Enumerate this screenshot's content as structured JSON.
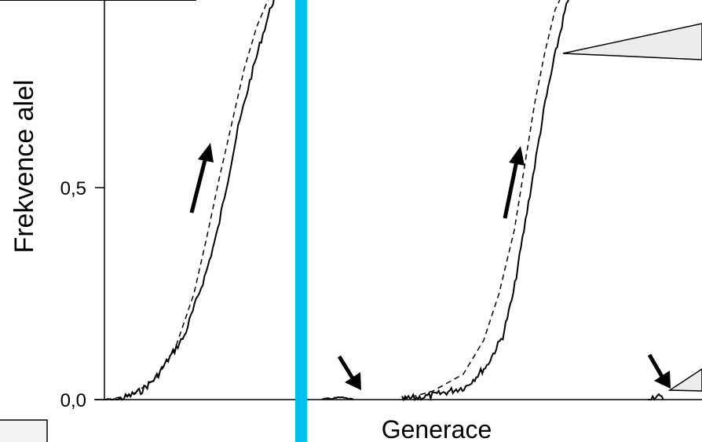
{
  "chart_data": {
    "type": "line",
    "xlabel": "Generace",
    "ylabel": "Frekvence alel",
    "yticks": [
      {
        "value": 0.0,
        "label": "0,0"
      },
      {
        "value": 0.5,
        "label": "0,5"
      }
    ],
    "ylim": [
      0,
      1
    ],
    "divider_color": "#00bff3",
    "panels": [
      {
        "series": [
          {
            "style": "solid-stochastic",
            "points": [
              [
                0,
                0.0
              ],
              [
                10,
                0.0
              ],
              [
                18,
                0.01
              ],
              [
                25,
                0.02
              ],
              [
                35,
                0.05
              ],
              [
                45,
                0.1
              ],
              [
                55,
                0.15
              ],
              [
                62,
                0.22
              ],
              [
                70,
                0.3
              ],
              [
                78,
                0.4
              ],
              [
                85,
                0.52
              ],
              [
                92,
                0.64
              ],
              [
                100,
                0.75
              ],
              [
                108,
                0.85
              ],
              [
                115,
                0.93
              ],
              [
                120,
                0.97
              ],
              [
                125,
                1.0
              ]
            ]
          },
          {
            "style": "dashed-deterministic",
            "points": [
              [
                0,
                0.0
              ],
              [
                20,
                0.01
              ],
              [
                40,
                0.05
              ],
              [
                55,
                0.12
              ],
              [
                70,
                0.25
              ],
              [
                80,
                0.38
              ],
              [
                90,
                0.52
              ],
              [
                100,
                0.65
              ],
              [
                110,
                0.78
              ],
              [
                120,
                0.88
              ],
              [
                130,
                0.95
              ],
              [
                140,
                0.99
              ]
            ]
          }
        ],
        "arrows": [
          "up"
        ]
      },
      {
        "series": [
          {
            "style": "solid-stochastic",
            "points": [
              [
                0,
                0.0
              ],
              [
                12,
                0.005
              ],
              [
                20,
                0.0
              ]
            ]
          },
          {
            "style": "solid-stochastic",
            "points": [
              [
                0,
                0.0
              ],
              [
                30,
                0.01
              ],
              [
                60,
                0.03
              ],
              [
                80,
                0.08
              ],
              [
                95,
                0.15
              ],
              [
                105,
                0.25
              ],
              [
                115,
                0.4
              ],
              [
                125,
                0.55
              ],
              [
                135,
                0.7
              ],
              [
                145,
                0.82
              ],
              [
                155,
                0.93
              ],
              [
                165,
                0.98
              ],
              [
                175,
                1.0
              ]
            ]
          },
          {
            "style": "dashed-deterministic",
            "points": [
              [
                0,
                0.0
              ],
              [
                30,
                0.02
              ],
              [
                60,
                0.06
              ],
              [
                80,
                0.14
              ],
              [
                95,
                0.25
              ],
              [
                110,
                0.4
              ],
              [
                120,
                0.55
              ],
              [
                130,
                0.7
              ],
              [
                140,
                0.82
              ],
              [
                150,
                0.92
              ],
              [
                160,
                0.97
              ],
              [
                175,
                1.0
              ]
            ]
          },
          {
            "style": "solid-stochastic",
            "points": [
              [
                0,
                0.0
              ],
              [
                8,
                0.01
              ],
              [
                15,
                0.0
              ]
            ]
          }
        ],
        "arrows": [
          "down-left",
          "up",
          "down-left"
        ]
      }
    ]
  }
}
